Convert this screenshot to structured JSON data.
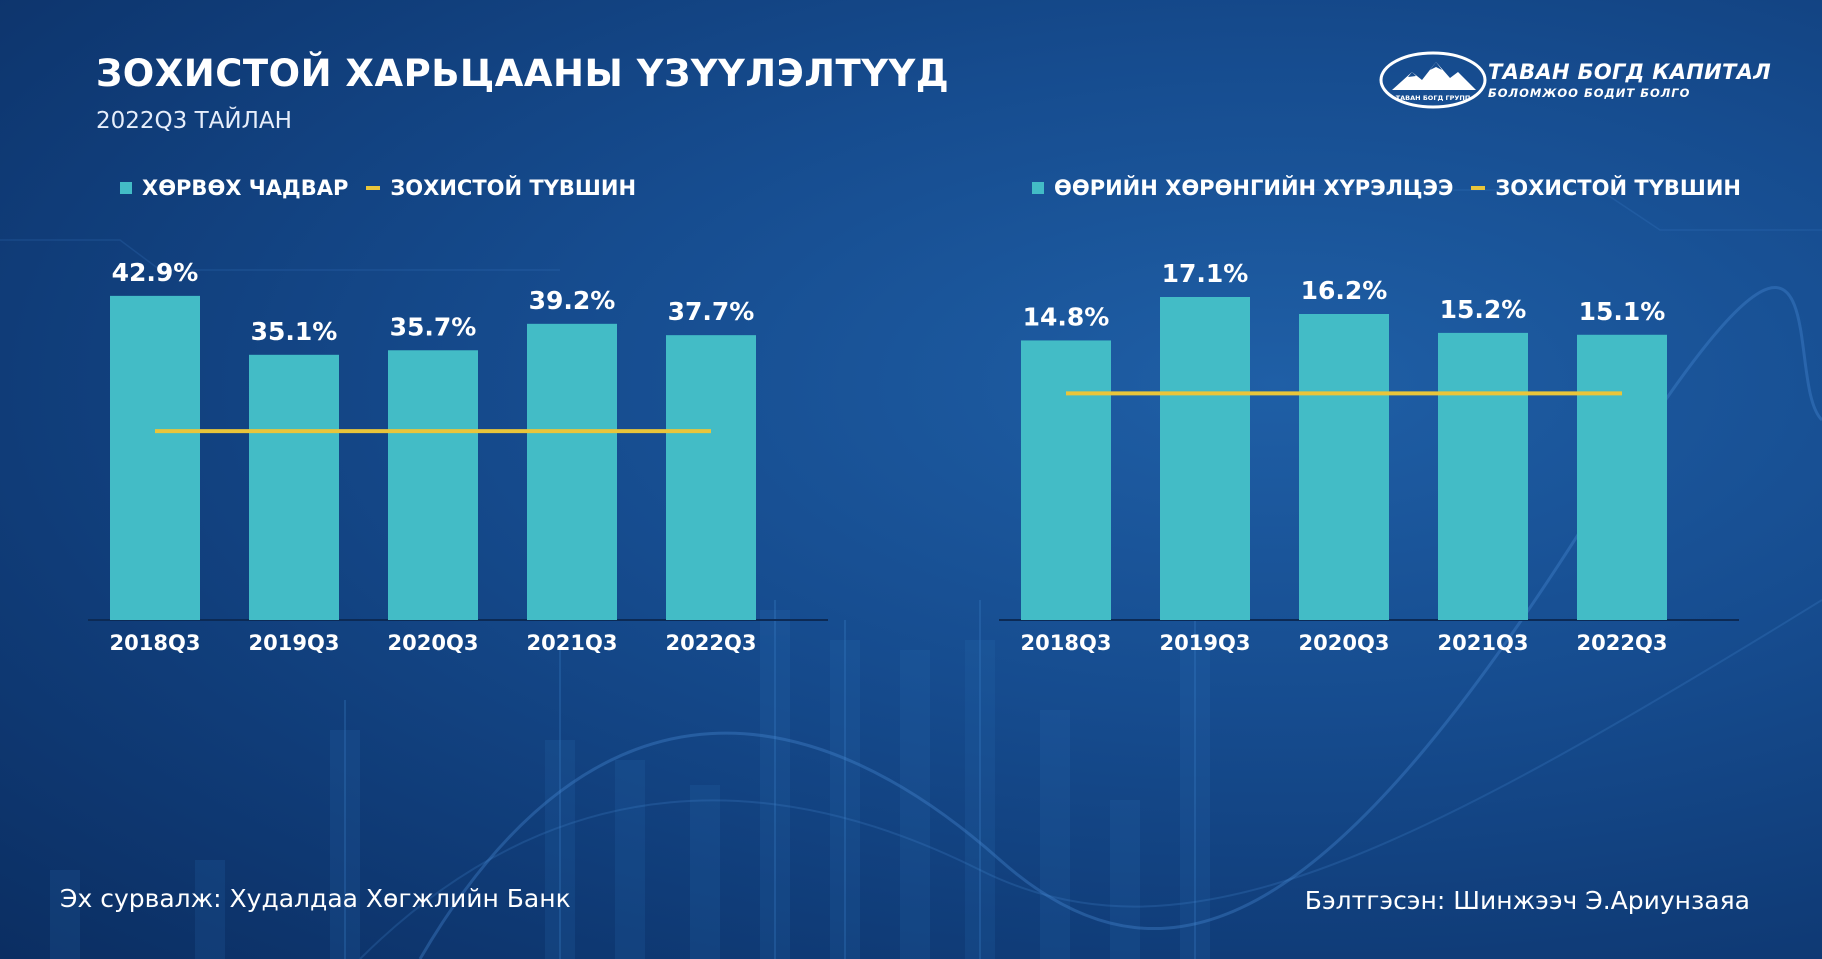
{
  "header": {
    "title": "ЗОХИСТОЙ ХАРЬЦААНЫ ҮЗҮҮЛЭЛТҮҮД",
    "subtitle": "2022Q3 ТАЙЛАН"
  },
  "logo": {
    "name": "ТАВАН БОГД КАПИТАЛ",
    "tagline": "БОЛОМЖОО БОДИТ БОЛГО",
    "emblem_text": "ТАВАН БОГД ГРУПП"
  },
  "colors": {
    "bar": "#43bcc6",
    "threshold": "#e9c53a",
    "background": "#164c8f"
  },
  "chart_data": [
    {
      "type": "bar",
      "title": "",
      "categories": [
        "2018Q3",
        "2019Q3",
        "2020Q3",
        "2021Q3",
        "2022Q3"
      ],
      "series": [
        {
          "name": "ХӨРВӨХ ЧАДВАР",
          "values": [
            42.9,
            35.1,
            35.7,
            39.2,
            37.7
          ]
        }
      ],
      "data_labels": [
        "42.9%",
        "35.1%",
        "35.7%",
        "39.2%",
        "37.7%"
      ],
      "threshold": {
        "name": "ЗОХИСТОЙ ТҮВШИН",
        "value": 25
      },
      "ylim": [
        0,
        45
      ],
      "grid": false,
      "legend_position": "top-left"
    },
    {
      "type": "bar",
      "title": "",
      "categories": [
        "2018Q3",
        "2019Q3",
        "2020Q3",
        "2021Q3",
        "2022Q3"
      ],
      "series": [
        {
          "name": "ӨӨРИЙН ХӨРӨНГИЙН ХҮРЭЛЦЭЭ",
          "values": [
            14.8,
            17.1,
            16.2,
            15.2,
            15.1
          ]
        }
      ],
      "data_labels": [
        "14.8%",
        "17.1%",
        "16.2%",
        "15.2%",
        "15.1%"
      ],
      "threshold": {
        "name": "ЗОХИСТОЙ ТҮВШИН",
        "value": 12
      },
      "ylim": [
        0,
        18
      ],
      "grid": false,
      "legend_position": "top-left"
    }
  ],
  "footer": {
    "source": "Эх сурвалж: Худалдаа Хөгжлийн Банк",
    "prepared_by": "Бэлтгэсэн: Шинжээч Э.Ариунзаяа"
  }
}
